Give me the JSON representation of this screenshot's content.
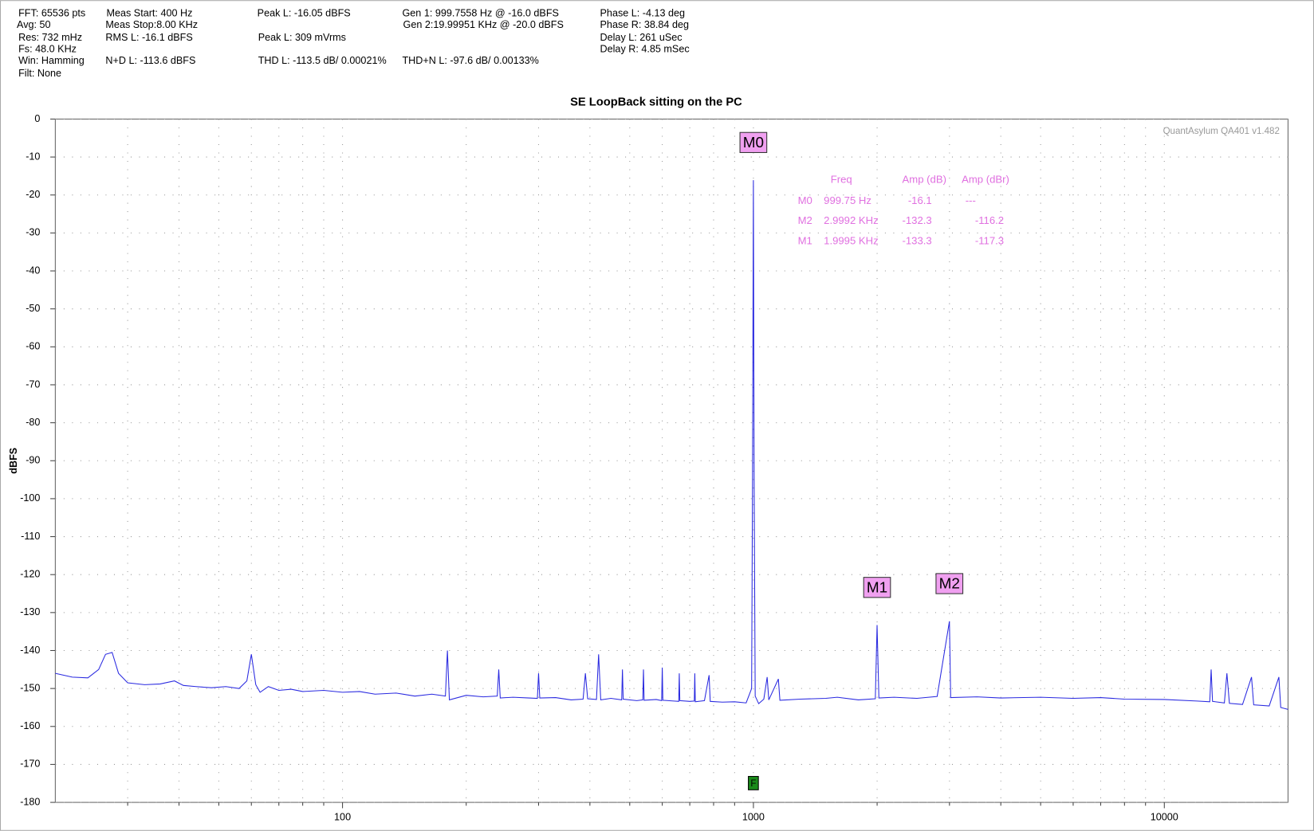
{
  "header_stats": [
    "FFT: 65536 pts",
    "Avg: 50",
    "Res: 732 mHz",
    "Fs: 48.0 KHz",
    "Win: Hamming",
    "Filt: None",
    "Meas Start: 400 Hz",
    "Meas Stop:8.00 KHz",
    "RMS L: -16.1 dBFS",
    "N+D L: -113.6 dBFS",
    "Peak L: -16.05 dBFS",
    "Peak L: 309 mVrms",
    "THD L: -113.5 dB/ 0.00021%",
    "Gen 1: 999.7558 Hz @ -16.0  dBFS",
    "Gen 2:19.99951 KHz @ -20.0  dBFS",
    "THD+N L: -97.6 dB/ 0.00133%",
    "Phase L: -4.13 deg",
    "Phase R: 38.84 deg",
    "Delay L: 261 uSec",
    "Delay R: 4.85 mSec"
  ],
  "chart_data": {
    "type": "line",
    "title": "SE LoopBack sitting on the PC",
    "y_label": "dBFS",
    "watermark": "QuantAsylum QA401 v1.482",
    "x_scale": "log",
    "grid": true,
    "color": "#2a2ae0",
    "xlim": [
      20,
      20000
    ],
    "xticks": [
      100,
      1000,
      10000
    ],
    "x_minor_ticks": [
      30,
      40,
      50,
      60,
      70,
      80,
      90,
      200,
      300,
      400,
      500,
      600,
      700,
      800,
      900,
      2000,
      3000,
      4000,
      5000,
      6000,
      7000,
      8000,
      9000
    ],
    "ylim": [
      -180,
      0
    ],
    "yticks": [
      0,
      -10,
      -20,
      -30,
      -40,
      -50,
      -60,
      -70,
      -80,
      -90,
      -100,
      -110,
      -120,
      -130,
      -140,
      -150,
      -160,
      -170,
      -180
    ],
    "x": [
      20,
      22,
      24,
      25.5,
      26.5,
      27.5,
      28.5,
      30,
      33,
      36,
      39,
      41,
      44,
      48,
      52,
      56,
      58.5,
      60,
      61.5,
      63,
      66,
      70,
      75,
      80,
      90,
      100,
      110,
      120,
      135,
      150,
      165,
      178,
      180,
      182,
      200,
      220,
      238,
      240,
      242,
      260,
      285,
      298,
      300,
      302,
      330,
      360,
      385,
      390,
      395,
      415,
      420,
      425,
      450,
      478,
      480,
      482,
      520,
      538,
      540,
      542,
      580,
      598,
      600,
      602,
      640,
      658,
      660,
      662,
      700,
      718,
      720,
      722,
      760,
      780,
      785,
      840,
      900,
      960,
      990,
      995,
      999.75,
      1004,
      1010,
      1030,
      1060,
      1080,
      1090,
      1150,
      1160,
      1300,
      1500,
      1600,
      1800,
      1980,
      1999.5,
      2020,
      2200,
      2500,
      2800,
      2999.2,
      3020,
      3500,
      4000,
      5000,
      6000,
      7000,
      8000,
      10000,
      12000,
      12900,
      13000,
      13100,
      14000,
      14200,
      14400,
      15500,
      16300,
      16500,
      18000,
      19000,
      19200,
      20000
    ],
    "values": [
      -146,
      -147,
      -147.2,
      -145,
      -141,
      -140.5,
      -146,
      -148.5,
      -149,
      -148.8,
      -148,
      -149.2,
      -149.5,
      -149.8,
      -149.5,
      -150,
      -148,
      -141,
      -149,
      -151,
      -149.5,
      -150.5,
      -150.2,
      -150.8,
      -150.5,
      -151,
      -150.8,
      -151.5,
      -151.2,
      -152,
      -151.5,
      -152,
      -140,
      -153,
      -151.8,
      -152.2,
      -152,
      -145,
      -152.5,
      -152.3,
      -152.5,
      -152.6,
      -146,
      -152.5,
      -152.4,
      -153,
      -152.8,
      -146,
      -152.7,
      -152.9,
      -141,
      -153,
      -152.6,
      -153,
      -145,
      -152.8,
      -153.2,
      -153,
      -145,
      -153.1,
      -152.9,
      -153.2,
      -144.5,
      -153.1,
      -153.3,
      -153.4,
      -146,
      -153.2,
      -153.4,
      -153.3,
      -146,
      -153.5,
      -153.2,
      -146.5,
      -153.4,
      -153.6,
      -153.5,
      -153.8,
      -150,
      -95,
      -16.1,
      -95,
      -152,
      -154,
      -152.8,
      -147,
      -153,
      -147.5,
      -153.1,
      -152.8,
      -152.6,
      -152.3,
      -153,
      -152.7,
      -133.3,
      -152.5,
      -152.3,
      -152.6,
      -152.1,
      -132.3,
      -152.4,
      -152.2,
      -152.5,
      -152.3,
      -152.6,
      -152.4,
      -152.8,
      -152.9,
      -153.3,
      -153.5,
      -145,
      -153.4,
      -153.8,
      -146,
      -153.9,
      -154.2,
      -147,
      -154.3,
      -154.6,
      -147,
      -155,
      -155.5
    ],
    "markers": [
      {
        "label": "M0",
        "x": 999.75,
        "value": -16.1
      },
      {
        "label": "M1",
        "x": 1999.5,
        "value": -133.3
      },
      {
        "label": "M2",
        "x": 2999.2,
        "value": -132.3
      }
    ],
    "fundamental_flag": {
      "label": "F",
      "x": 999.7558
    },
    "marker_table": {
      "columns": [
        "Freq",
        "Amp (dB)",
        "Amp (dBr)"
      ],
      "rows": [
        [
          "M0",
          "999.75 Hz",
          "-16.1",
          "---"
        ],
        [
          "M2",
          "2.9992 KHz",
          "-132.3",
          "-116.2"
        ],
        [
          "M1",
          "1.9995 KHz",
          "-133.3",
          "-117.3"
        ]
      ]
    }
  }
}
